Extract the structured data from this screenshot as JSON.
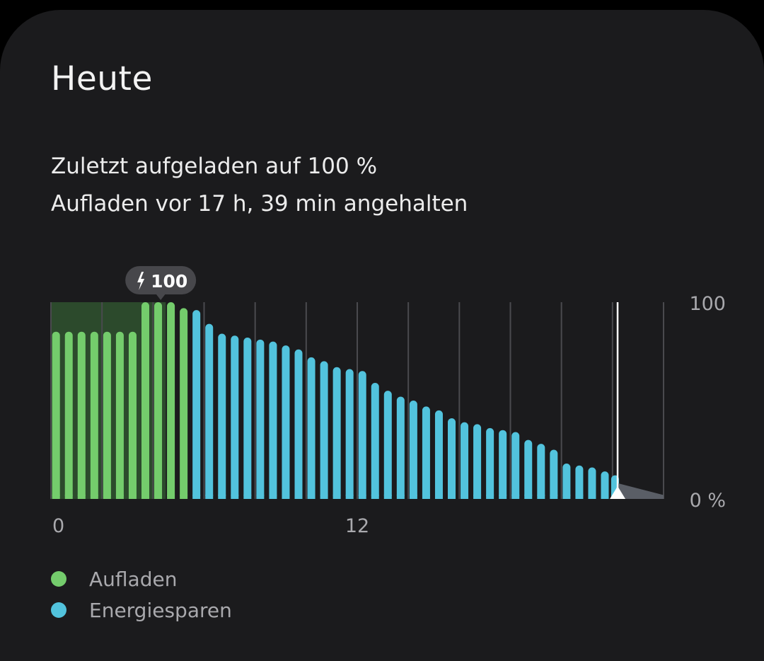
{
  "card": {
    "title": "Heute",
    "status_line_1": "Zuletzt aufgeladen auf 100 %",
    "status_line_2": "Aufladen vor 17 h, 39 min angehalten"
  },
  "colors": {
    "background": "#1b1b1d",
    "charging": "#74cc6c",
    "power_saving": "#52c3dd",
    "charging_region": "#2c4a2c",
    "projection": "#5a5e66",
    "now_marker": "#ffffff"
  },
  "chart_data": {
    "type": "bar",
    "title": "",
    "xlabel": "",
    "ylabel": "",
    "ylim": [
      0,
      100
    ],
    "xlim": [
      0,
      24
    ],
    "x_ticks": [
      {
        "value": 0,
        "label": "0"
      },
      {
        "value": 12,
        "label": "12"
      }
    ],
    "y_ticks": [
      {
        "value": 100,
        "label": "100"
      },
      {
        "value": 0,
        "label": "0 %"
      }
    ],
    "vertical_gridlines_hours": [
      2,
      4,
      6,
      8,
      10,
      12,
      14,
      16,
      18,
      20,
      22,
      24
    ],
    "charging_region_hours": [
      0,
      4.5
    ],
    "now_hour": 22.2,
    "projection": {
      "from_percent": 8,
      "to_percent": 2,
      "to_hour": 24
    },
    "peak_badge": {
      "label": "100",
      "icon": "bolt-icon",
      "hour": 4.3
    },
    "legend_position": "bottom-left",
    "series": [
      {
        "name": "Aufladen",
        "color": "#74cc6c",
        "points": [
          [
            0.2,
            85
          ],
          [
            0.7,
            85
          ],
          [
            1.2,
            85
          ],
          [
            1.7,
            85
          ],
          [
            2.2,
            85
          ],
          [
            2.7,
            85
          ],
          [
            3.2,
            85
          ],
          [
            3.7,
            100
          ],
          [
            4.2,
            100
          ],
          [
            4.7,
            100
          ],
          [
            5.2,
            97
          ]
        ]
      },
      {
        "name": "Energiesparen",
        "color": "#52c3dd",
        "points": [
          [
            5.7,
            96
          ],
          [
            6.2,
            89
          ],
          [
            6.7,
            84
          ],
          [
            7.2,
            83
          ],
          [
            7.7,
            82
          ],
          [
            8.2,
            81
          ],
          [
            8.7,
            80
          ],
          [
            9.2,
            78
          ],
          [
            9.7,
            76
          ],
          [
            10.2,
            72
          ],
          [
            10.7,
            70
          ],
          [
            11.2,
            67
          ],
          [
            11.7,
            66
          ],
          [
            12.2,
            65
          ],
          [
            12.7,
            59
          ],
          [
            13.2,
            55
          ],
          [
            13.7,
            52
          ],
          [
            14.2,
            50
          ],
          [
            14.7,
            47
          ],
          [
            15.2,
            45
          ],
          [
            15.7,
            41
          ],
          [
            16.2,
            39
          ],
          [
            16.7,
            38
          ],
          [
            17.2,
            36
          ],
          [
            17.7,
            35
          ],
          [
            18.2,
            34
          ],
          [
            18.7,
            30
          ],
          [
            19.2,
            28
          ],
          [
            19.7,
            25
          ],
          [
            20.2,
            18
          ],
          [
            20.7,
            17
          ],
          [
            21.2,
            16
          ],
          [
            21.7,
            14
          ],
          [
            22.1,
            12
          ]
        ]
      }
    ]
  },
  "legend": [
    {
      "label": "Aufladen",
      "color": "#74cc6c"
    },
    {
      "label": "Energiesparen",
      "color": "#52c3dd"
    }
  ]
}
